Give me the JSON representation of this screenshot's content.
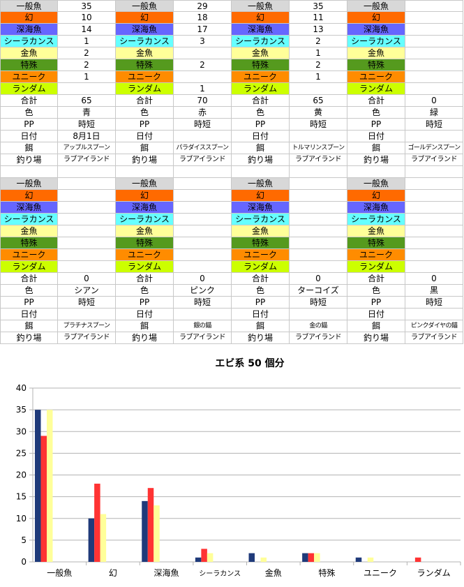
{
  "colors": {
    "一般魚": "#d8d8d8",
    "幻": "#ff6a00",
    "深海魚": "#6666ff",
    "シーラカンス": "#66ffff",
    "金魚": "#ffff99",
    "特殊": "#559a1e",
    "ユニーク": "#ff8c00",
    "ランダム": "#ccff00",
    "bar_blue": "#1f3a7a",
    "bar_red": "#ff3333",
    "bar_yellow": "#ffff99"
  },
  "fish_labels": [
    "一般魚",
    "幻",
    "深海魚",
    "シーラカンス",
    "金魚",
    "特殊",
    "ユニーク",
    "ランダム"
  ],
  "meta_labels": {
    "total": "合計",
    "color": "色",
    "pp": "PP",
    "date": "日付",
    "bait": "餌",
    "spot": "釣り場"
  },
  "blocks": [
    [
      {
        "counts": [
          "35",
          "10",
          "14",
          "1",
          "2",
          "2",
          "1",
          ""
        ],
        "total": "65",
        "color": "青",
        "pp": "時短",
        "date": "8月1日",
        "bait": "アップルスプーン",
        "spot": "ラブアイランド"
      },
      {
        "counts": [
          "29",
          "18",
          "17",
          "3",
          "",
          "2",
          "",
          "1"
        ],
        "total": "70",
        "color": "赤",
        "pp": "時短",
        "date": "",
        "bait": "パラダイススプーン",
        "spot": "ラブアイランド"
      },
      {
        "counts": [
          "35",
          "11",
          "13",
          "2",
          "1",
          "2",
          "1",
          ""
        ],
        "total": "65",
        "color": "黄",
        "pp": "時短",
        "date": "",
        "bait": "トルマリンスプーン",
        "spot": "ラブアイランド"
      },
      {
        "counts": [
          "",
          "",
          "",
          "",
          "",
          "",
          "",
          ""
        ],
        "total": "0",
        "color": "緑",
        "pp": "時短",
        "date": "",
        "bait": "ゴールデンスプーン",
        "spot": "ラブアイランド"
      }
    ],
    [
      {
        "counts": [
          "",
          "",
          "",
          "",
          "",
          "",
          "",
          ""
        ],
        "total": "0",
        "color": "シアン",
        "pp": "時短",
        "date": "",
        "bait": "プラチナスプーン",
        "spot": "ラブアイランド"
      },
      {
        "counts": [
          "",
          "",
          "",
          "",
          "",
          "",
          "",
          ""
        ],
        "total": "0",
        "color": "ピンク",
        "pp": "時短",
        "date": "",
        "bait": "銀の錨",
        "spot": "ラブアイランド"
      },
      {
        "counts": [
          "",
          "",
          "",
          "",
          "",
          "",
          "",
          ""
        ],
        "total": "0",
        "color": "ターコイズ",
        "pp": "時短",
        "date": "",
        "bait": "金の錨",
        "spot": "ラブアイランド"
      },
      {
        "counts": [
          "",
          "",
          "",
          "",
          "",
          "",
          "",
          ""
        ],
        "total": "0",
        "color": "黒",
        "pp": "時短",
        "date": "",
        "bait": "ピンクダイヤの錨",
        "spot": "ラブアイランド"
      }
    ]
  ],
  "chart_data": {
    "type": "bar",
    "title": "エビ系 50 個分",
    "categories": [
      "一般魚",
      "幻",
      "深海魚",
      "シーラカンス",
      "金魚",
      "特殊",
      "ユニーク",
      "ランダム"
    ],
    "series": [
      {
        "values": [
          35,
          10,
          14,
          1,
          2,
          2,
          1,
          0
        ],
        "color": "#1f3a7a"
      },
      {
        "values": [
          29,
          18,
          17,
          3,
          0,
          2,
          0,
          1
        ],
        "color": "#ff3333"
      },
      {
        "values": [
          35,
          11,
          13,
          2,
          1,
          2,
          1,
          0
        ],
        "color": "#ffff99"
      }
    ],
    "ylim": [
      0,
      40
    ],
    "yticks": [
      0,
      5,
      10,
      15,
      20,
      25,
      30,
      35,
      40
    ],
    "grid": true,
    "legend": "none"
  }
}
